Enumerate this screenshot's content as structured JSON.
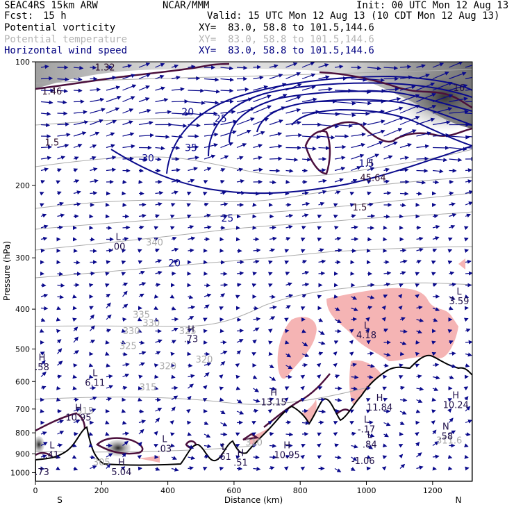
{
  "header": {
    "model": "SEAC4RS 15km ARW",
    "center": "NCAR/MMM",
    "init": "Init: 00 UTC Mon 12 Aug 13",
    "fcst_label": "Fcst:",
    "fcst_value": "15 h",
    "valid": "Valid: 15 UTC Mon 12 Aug 13 (10 CDT Mon 12 Aug 13)",
    "fields": [
      {
        "name": "Potential vorticity",
        "xy": "XY=  83.0, 58.8 to 101.5,144.6",
        "color": "#000000"
      },
      {
        "name": "Potential temperature",
        "xy": "XY=  83.0, 58.8 to 101.5,144.6",
        "color": "#b4b4b4"
      },
      {
        "name": "Horizontal wind speed",
        "xy": "XY=  83.0, 58.8 to 101.5,144.6",
        "color": "#000080"
      }
    ]
  },
  "chart_data": {
    "type": "cross-section",
    "xlabel": "Distance (km)",
    "ylabel": "Pressure (hPa)",
    "xlim": [
      0,
      1320
    ],
    "ylim": [
      1050,
      100
    ],
    "y_scale": "log",
    "x_ticks": [
      0,
      200,
      400,
      600,
      800,
      1000,
      1200
    ],
    "y_ticks": [
      100,
      200,
      300,
      400,
      500,
      600,
      700,
      800,
      900,
      1000
    ],
    "endpoints": {
      "left": "S",
      "right": "N"
    },
    "colors": {
      "pv": "#4b0f3c",
      "theta": "#aaaaaa",
      "wind": "#0a0a8c",
      "terrain": "#000000",
      "shade_low": "#f5b4b4"
    },
    "theta_labels": [
      {
        "x": 360,
        "p": 280,
        "text": "340"
      },
      {
        "x": 320,
        "p": 420,
        "text": "335"
      },
      {
        "x": 350,
        "p": 440,
        "text": "330"
      },
      {
        "x": 290,
        "p": 460,
        "text": "330"
      },
      {
        "x": 460,
        "p": 460,
        "text": "325"
      },
      {
        "x": 280,
        "p": 500,
        "text": "325"
      },
      {
        "x": 510,
        "p": 540,
        "text": "320"
      },
      {
        "x": 400,
        "p": 560,
        "text": "320"
      },
      {
        "x": 340,
        "p": 630,
        "text": "315"
      },
      {
        "x": 150,
        "p": 720,
        "text": "315"
      },
      {
        "x": 660,
        "p": 860,
        "text": "310"
      },
      {
        "x": 1250,
        "p": 850,
        "text": "311.6"
      },
      {
        "x": 200,
        "p": 960,
        "text": "305"
      }
    ],
    "wind_labels": [
      {
        "x": 460,
        "p": 135,
        "text": "20"
      },
      {
        "x": 560,
        "p": 140,
        "text": "25"
      },
      {
        "x": 340,
        "p": 175,
        "text": "30"
      },
      {
        "x": 470,
        "p": 165,
        "text": "35"
      },
      {
        "x": 420,
        "p": 315,
        "text": "20"
      },
      {
        "x": 580,
        "p": 245,
        "text": "25"
      },
      {
        "x": 1000,
        "p": 180,
        "text": "1.5"
      }
    ],
    "pv_labels": [
      {
        "x": 50,
        "p": 120,
        "text": "1.46"
      },
      {
        "x": 210,
        "p": 105,
        "text": "1.32"
      },
      {
        "x": 50,
        "p": 160,
        "text": "1.5"
      },
      {
        "x": 1020,
        "p": 195,
        "text": "45.64"
      },
      {
        "x": 980,
        "p": 230,
        "text": "1.5"
      }
    ],
    "extrema": [
      {
        "x": 250,
        "p": 280,
        "type": "L",
        "value": ".00"
      },
      {
        "x": 470,
        "p": 470,
        "type": "H",
        "value": ".73"
      },
      {
        "x": 20,
        "p": 550,
        "type": "H",
        "value": ".58"
      },
      {
        "x": 180,
        "p": 600,
        "type": "L",
        "value": "6.11"
      },
      {
        "x": 130,
        "p": 730,
        "type": "H",
        "value": "10.95"
      },
      {
        "x": 720,
        "p": 670,
        "type": "H",
        "value": "13.15"
      },
      {
        "x": 1040,
        "p": 690,
        "type": "H",
        "value": "11.84"
      },
      {
        "x": 1270,
        "p": 680,
        "type": "H",
        "value": "10.24"
      },
      {
        "x": 1000,
        "p": 780,
        "type": "L",
        "value": "-.17"
      },
      {
        "x": 1010,
        "p": 850,
        "type": "L",
        "value": ".84"
      },
      {
        "x": 1240,
        "p": 810,
        "type": "N",
        "value": ".58"
      },
      {
        "x": 390,
        "p": 870,
        "type": "L",
        "value": ".03"
      },
      {
        "x": 50,
        "p": 900,
        "type": "L",
        "value": ".41"
      },
      {
        "x": 570,
        "p": 910,
        "type": "L",
        "value": ".61"
      },
      {
        "x": 620,
        "p": 940,
        "type": "H",
        "value": ".51"
      },
      {
        "x": 760,
        "p": 900,
        "type": "H",
        "value": "10.95"
      },
      {
        "x": 990,
        "p": 930,
        "type": "",
        "value": "-1.06"
      },
      {
        "x": 20,
        "p": 990,
        "type": "",
        "value": ".73"
      },
      {
        "x": 260,
        "p": 990,
        "type": "H",
        "value": "5.04"
      },
      {
        "x": 1280,
        "p": 380,
        "type": "L",
        "value": "3.59"
      },
      {
        "x": 1000,
        "p": 460,
        "type": "L",
        "value": "4.18"
      },
      {
        "x": 1010,
        "p": 185,
        "type": "H",
        "value": ""
      },
      {
        "x": 1280,
        "p": 115,
        "type": "",
        "value": "16"
      }
    ]
  }
}
